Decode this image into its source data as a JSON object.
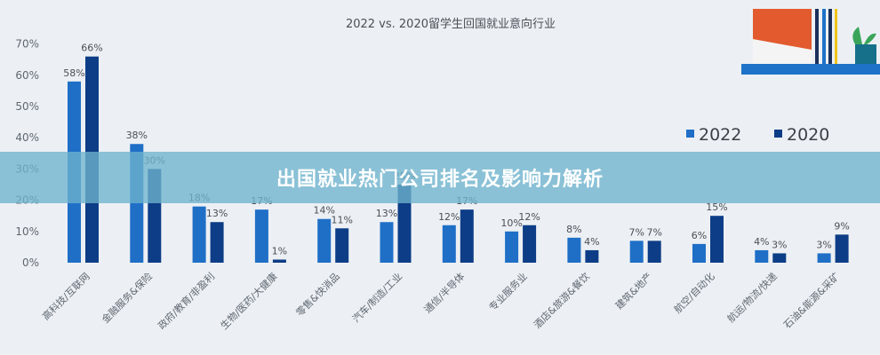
{
  "banner": {
    "title": "出国就业热门公司排名及影响力解析"
  },
  "legend": {
    "items": [
      {
        "label": "2022",
        "color": "#1f6fc7"
      },
      {
        "label": "2020",
        "color": "#0d3d86"
      }
    ]
  },
  "chart_data": {
    "type": "bar",
    "title": "2022 vs. 2020留学生回国就业意向行业",
    "categories": [
      "高科技/互联网",
      "金融服务&保险",
      "政府/教育/非盈利",
      "生物/医药/大健康",
      "零售&快消品",
      "汽车/制造/工业",
      "通信/半导体",
      "专业服务业",
      "酒店&旅游&餐饮",
      "建筑&地产",
      "航空/自动化",
      "航运/物流/快递",
      "石油&能源&采矿"
    ],
    "series": [
      {
        "name": "2022",
        "color": "#1f6fc7",
        "values": [
          58,
          38,
          18,
          17,
          14,
          13,
          12,
          10,
          8,
          7,
          6,
          4,
          3
        ]
      },
      {
        "name": "2020",
        "color": "#0d3d86",
        "values": [
          66,
          30,
          13,
          1,
          11,
          25,
          17,
          12,
          4,
          7,
          15,
          3,
          9
        ]
      }
    ],
    "y_ticks": [
      "0%",
      "10%",
      "20%",
      "30%",
      "40%",
      "50%",
      "60%",
      "70%"
    ],
    "ylim": [
      0,
      70
    ],
    "unit": "%",
    "legend_position": "right",
    "grid": false
  }
}
